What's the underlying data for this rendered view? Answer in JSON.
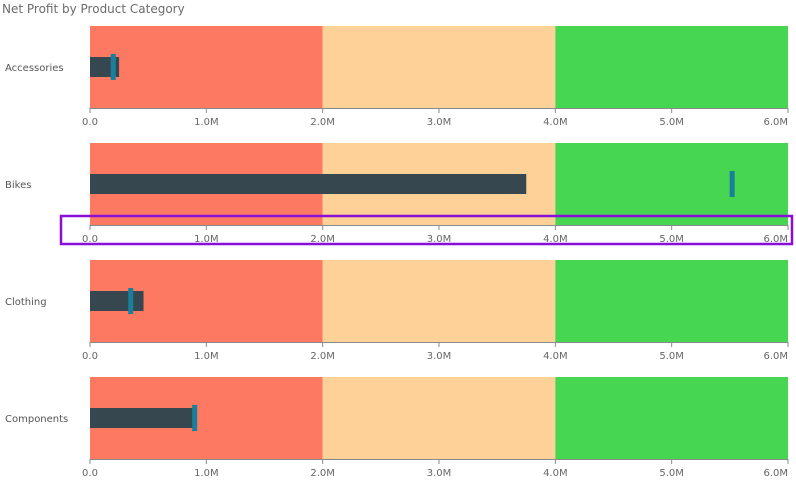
{
  "chart_data": {
    "type": "bullet",
    "title": "Net Profit by Product Category",
    "x_range": [
      0,
      6000000
    ],
    "x_ticks": [
      0,
      1000000,
      2000000,
      3000000,
      4000000,
      5000000,
      6000000
    ],
    "x_tick_labels": [
      "0.0",
      "1.0M",
      "2.0M",
      "3.0M",
      "4.0M",
      "5.0M",
      "6.0M"
    ],
    "bands": [
      {
        "from": 0,
        "to": 2000000,
        "color": "#fe7961"
      },
      {
        "from": 2000000,
        "to": 4000000,
        "color": "#fdd197"
      },
      {
        "from": 4000000,
        "to": 6000000,
        "color": "#47d652"
      }
    ],
    "value_color": "#37474f",
    "target_color": "#1a7f9c",
    "categories": [
      {
        "label": "Accessories",
        "value": 250000,
        "target": 200000
      },
      {
        "label": "Bikes",
        "value": 3750000,
        "target": 5520000
      },
      {
        "label": "Clothing",
        "value": 460000,
        "target": 350000
      },
      {
        "label": "Components",
        "value": 890000,
        "target": 900000
      }
    ],
    "highlight": {
      "category_index": 1,
      "color": "#8a0fd6"
    }
  }
}
